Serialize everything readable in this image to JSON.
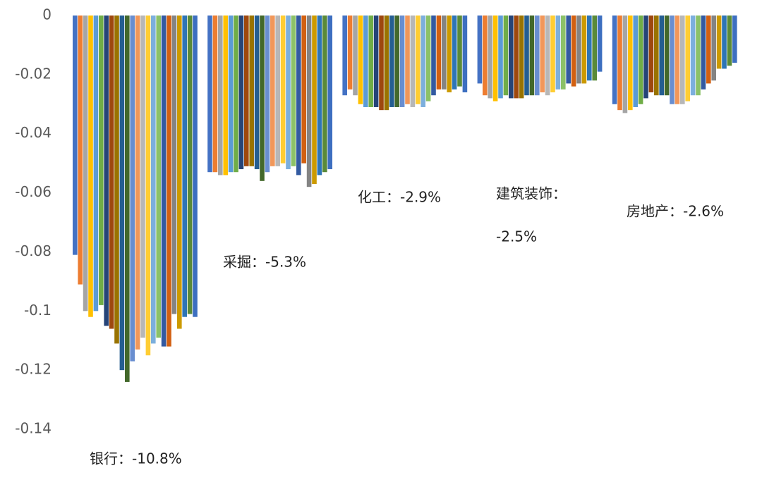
{
  "chart_data": {
    "type": "bar",
    "categories": [
      [
        "银行：-10.8%"
      ],
      [
        "采掘：-5.3%"
      ],
      [
        "化工：-2.9%"
      ],
      [
        "建筑装饰：",
        "-2.5%"
      ],
      [
        "房地产：-2.6%"
      ]
    ],
    "ylim": [
      -0.14,
      0
    ],
    "yticks": [
      0,
      -0.02,
      -0.04,
      -0.06,
      -0.08,
      -0.1,
      -0.12,
      -0.14
    ],
    "series": [
      {
        "color": "#4472c4",
        "values": [
          -0.081,
          -0.053,
          -0.027,
          -0.023,
          -0.03
        ]
      },
      {
        "color": "#ed7d31",
        "values": [
          -0.091,
          -0.053,
          -0.025,
          -0.027,
          -0.032
        ]
      },
      {
        "color": "#a5a5a5",
        "values": [
          -0.1,
          -0.054,
          -0.027,
          -0.028,
          -0.033
        ]
      },
      {
        "color": "#ffc000",
        "values": [
          -0.102,
          -0.054,
          -0.03,
          -0.029,
          -0.032
        ]
      },
      {
        "color": "#5b9bd5",
        "values": [
          -0.1,
          -0.053,
          -0.031,
          -0.028,
          -0.031
        ]
      },
      {
        "color": "#70ad47",
        "values": [
          -0.098,
          -0.053,
          -0.031,
          -0.027,
          -0.03
        ]
      },
      {
        "color": "#264478",
        "values": [
          -0.105,
          -0.052,
          -0.031,
          -0.028,
          -0.028
        ]
      },
      {
        "color": "#9e480e",
        "values": [
          -0.106,
          -0.051,
          -0.032,
          -0.028,
          -0.026
        ]
      },
      {
        "color": "#997300",
        "values": [
          -0.111,
          -0.051,
          -0.032,
          -0.028,
          -0.027
        ]
      },
      {
        "color": "#255e91",
        "values": [
          -0.12,
          -0.052,
          -0.031,
          -0.027,
          -0.027
        ]
      },
      {
        "color": "#43682b",
        "values": [
          -0.124,
          -0.056,
          -0.031,
          -0.027,
          -0.027
        ]
      },
      {
        "color": "#698ed0",
        "values": [
          -0.117,
          -0.053,
          -0.031,
          -0.027,
          -0.03
        ]
      },
      {
        "color": "#f1975a",
        "values": [
          -0.113,
          -0.051,
          -0.03,
          -0.026,
          -0.03
        ]
      },
      {
        "color": "#b7b7b7",
        "values": [
          -0.109,
          -0.051,
          -0.031,
          -0.027,
          -0.03
        ]
      },
      {
        "color": "#ffcd33",
        "values": [
          -0.115,
          -0.05,
          -0.03,
          -0.026,
          -0.029
        ]
      },
      {
        "color": "#7cafdd",
        "values": [
          -0.111,
          -0.052,
          -0.031,
          -0.025,
          -0.027
        ]
      },
      {
        "color": "#8cc168",
        "values": [
          -0.109,
          -0.051,
          -0.029,
          -0.025,
          -0.027
        ]
      },
      {
        "color": "#335aa1",
        "values": [
          -0.112,
          -0.054,
          -0.027,
          -0.023,
          -0.025
        ]
      },
      {
        "color": "#d26012",
        "values": [
          -0.112,
          -0.05,
          -0.025,
          -0.024,
          -0.023
        ]
      },
      {
        "color": "#848484",
        "values": [
          -0.101,
          -0.058,
          -0.025,
          -0.023,
          -0.022
        ]
      },
      {
        "color": "#cc9a00",
        "values": [
          -0.106,
          -0.057,
          -0.026,
          -0.023,
          -0.018
        ]
      },
      {
        "color": "#2e75b6",
        "values": [
          -0.102,
          -0.054,
          -0.025,
          -0.022,
          -0.018
        ]
      },
      {
        "color": "#5a8a39",
        "values": [
          -0.101,
          -0.053,
          -0.024,
          -0.022,
          -0.017
        ]
      },
      {
        "color": "#3d6fc0",
        "values": [
          -0.102,
          -0.052,
          -0.026,
          -0.019,
          -0.016
        ]
      }
    ]
  }
}
